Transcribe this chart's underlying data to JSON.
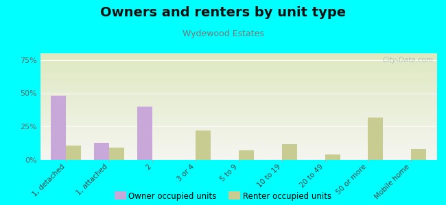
{
  "title": "Owners and renters by unit type",
  "subtitle": "Wydewood Estates",
  "categories": [
    "1, detached",
    "1, attached",
    "2",
    "3 or 4",
    "5 to 9",
    "10 to 19",
    "20 to 49",
    "50 or more",
    "Mobile home"
  ],
  "owner_values": [
    48,
    13,
    40,
    0,
    0,
    0,
    0,
    0,
    0
  ],
  "renter_values": [
    11,
    9,
    0,
    22,
    7,
    12,
    4,
    32,
    8
  ],
  "owner_color": "#c8a8d8",
  "renter_color": "#c8cc90",
  "ylim": [
    0,
    80
  ],
  "yticks": [
    0,
    25,
    50,
    75
  ],
  "ytick_labels": [
    "0%",
    "25%",
    "50%",
    "75%"
  ],
  "bar_width": 0.35,
  "fig_bg": "#00ffff",
  "watermark": "City-Data.com",
  "legend_owner": "Owner occupied units",
  "legend_renter": "Renter occupied units",
  "title_fontsize": 14,
  "subtitle_fontsize": 9
}
